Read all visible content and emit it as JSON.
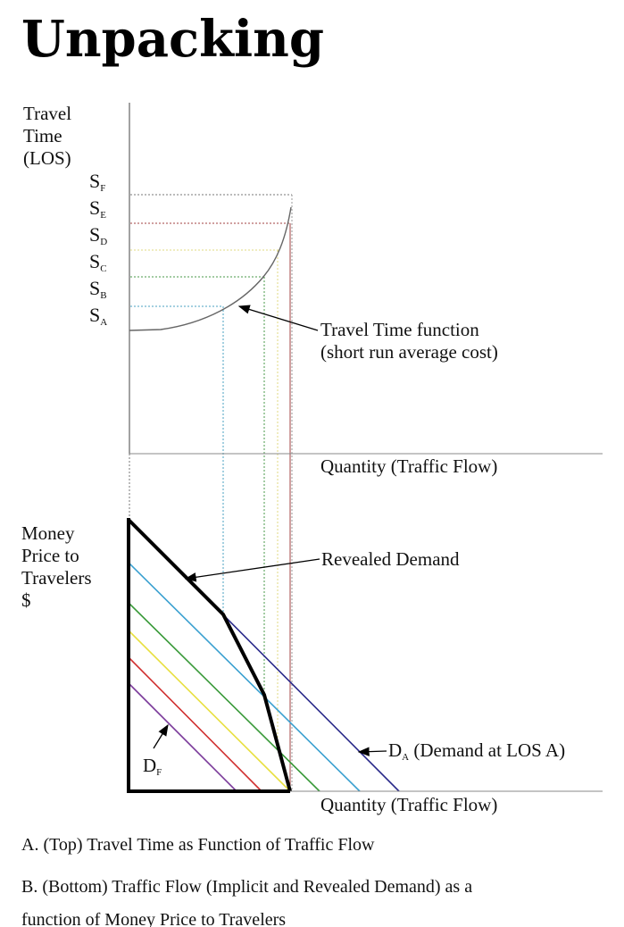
{
  "title": "Unpacking",
  "top_chart": {
    "y_label": [
      "Travel",
      "Time",
      "(LOS)"
    ],
    "levels": [
      {
        "main": "S",
        "sub": "F"
      },
      {
        "main": "S",
        "sub": "E"
      },
      {
        "main": "S",
        "sub": "D"
      },
      {
        "main": "S",
        "sub": "C"
      },
      {
        "main": "S",
        "sub": "B"
      },
      {
        "main": "S",
        "sub": "A"
      }
    ],
    "curve_label": [
      "Travel Time function",
      "(short run average cost)"
    ],
    "x_label": "Quantity (Traffic Flow)"
  },
  "bottom_chart": {
    "y_label": [
      "Money",
      "Price to",
      "Travelers",
      "$"
    ],
    "revealed_label": "Revealed Demand",
    "da_label": {
      "main": "D",
      "sub": "A",
      "rest": " (Demand at LOS A)"
    },
    "df_label": {
      "main": "D",
      "sub": "F"
    },
    "x_label": "Quantity (Traffic Flow)",
    "demand_colors": [
      "#2a2a8a",
      "#3aa0d0",
      "#3a9a3a",
      "#e8e040",
      "#d03030",
      "#7a3a9a"
    ],
    "revealed_color": "#000000"
  },
  "captions": [
    "A.  (Top) Travel Time as Function of Traffic Flow",
    "B. (Bottom) Traffic Flow (Implicit and Revealed Demand) as a",
    "function of Money Price to Travelers"
  ]
}
